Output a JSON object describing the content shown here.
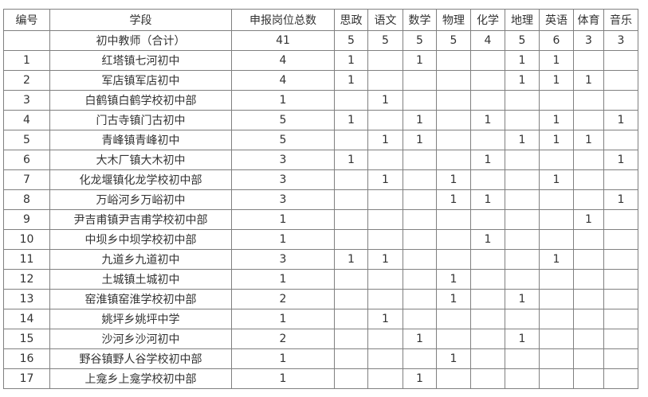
{
  "table": {
    "border_color": "#808080",
    "text_color": "#333333",
    "background_color": "#ffffff",
    "columns": [
      "编号",
      "学段",
      "申报岗位总数",
      "思政",
      "语文",
      "数学",
      "物理",
      "化学",
      "地理",
      "英语",
      "体育",
      "音乐"
    ],
    "rows": [
      {
        "id": "",
        "school": "初中教师（合计）",
        "total": "41",
        "subjects": [
          "5",
          "5",
          "5",
          "5",
          "4",
          "5",
          "6",
          "3",
          "3"
        ]
      },
      {
        "id": "1",
        "school": "红塔镇七河初中",
        "total": "4",
        "subjects": [
          "1",
          "",
          "1",
          "",
          "",
          "1",
          "1",
          "",
          ""
        ]
      },
      {
        "id": "2",
        "school": "军店镇军店初中",
        "total": "4",
        "subjects": [
          "1",
          "",
          "",
          "",
          "",
          "1",
          "1",
          "1",
          ""
        ]
      },
      {
        "id": "3",
        "school": "白鹤镇白鹤学校初中部",
        "total": "1",
        "subjects": [
          "",
          "1",
          "",
          "",
          "",
          "",
          "",
          "",
          ""
        ]
      },
      {
        "id": "4",
        "school": "门古寺镇门古初中",
        "total": "5",
        "subjects": [
          "1",
          "",
          "1",
          "",
          "1",
          "",
          "1",
          "",
          "1"
        ]
      },
      {
        "id": "5",
        "school": "青峰镇青峰初中",
        "total": "5",
        "subjects": [
          "",
          "1",
          "1",
          "",
          "",
          "1",
          "1",
          "1",
          ""
        ]
      },
      {
        "id": "6",
        "school": "大木厂镇大木初中",
        "total": "3",
        "subjects": [
          "1",
          "",
          "",
          "",
          "1",
          "",
          "",
          "",
          "1"
        ]
      },
      {
        "id": "7",
        "school": "化龙堰镇化龙学校初中部",
        "total": "3",
        "subjects": [
          "",
          "1",
          "",
          "1",
          "",
          "",
          "1",
          "",
          ""
        ]
      },
      {
        "id": "8",
        "school": "万峪河乡万峪初中",
        "total": "3",
        "subjects": [
          "",
          "",
          "",
          "1",
          "1",
          "",
          "",
          "",
          "1"
        ]
      },
      {
        "id": "9",
        "school": "尹吉甫镇尹吉甫学校初中部",
        "total": "1",
        "subjects": [
          "",
          "",
          "",
          "",
          "",
          "",
          "",
          "1",
          ""
        ]
      },
      {
        "id": "10",
        "school": "中坝乡中坝学校初中部",
        "total": "1",
        "subjects": [
          "",
          "",
          "",
          "",
          "1",
          "",
          "",
          "",
          ""
        ]
      },
      {
        "id": "11",
        "school": "九道乡九道初中",
        "total": "3",
        "subjects": [
          "1",
          "1",
          "",
          "",
          "",
          "",
          "1",
          "",
          ""
        ]
      },
      {
        "id": "12",
        "school": "土城镇土城初中",
        "total": "1",
        "subjects": [
          "",
          "",
          "",
          "1",
          "",
          "",
          "",
          "",
          ""
        ]
      },
      {
        "id": "13",
        "school": "窑淮镇窑淮学校初中部",
        "total": "2",
        "subjects": [
          "",
          "",
          "",
          "1",
          "",
          "1",
          "",
          "",
          ""
        ]
      },
      {
        "id": "14",
        "school": "姚坪乡姚坪中学",
        "total": "1",
        "subjects": [
          "",
          "1",
          "",
          "",
          "",
          "",
          "",
          "",
          ""
        ]
      },
      {
        "id": "15",
        "school": "沙河乡沙河初中",
        "total": "2",
        "subjects": [
          "",
          "",
          "1",
          "",
          "",
          "1",
          "",
          "",
          ""
        ]
      },
      {
        "id": "16",
        "school": "野谷镇野人谷学校初中部",
        "total": "1",
        "subjects": [
          "",
          "",
          "",
          "1",
          "",
          "",
          "",
          "",
          ""
        ]
      },
      {
        "id": "17",
        "school": "上龛乡上龛学校初中部",
        "total": "1",
        "subjects": [
          "",
          "",
          "1",
          "",
          "",
          "",
          "",
          "",
          ""
        ]
      }
    ]
  }
}
